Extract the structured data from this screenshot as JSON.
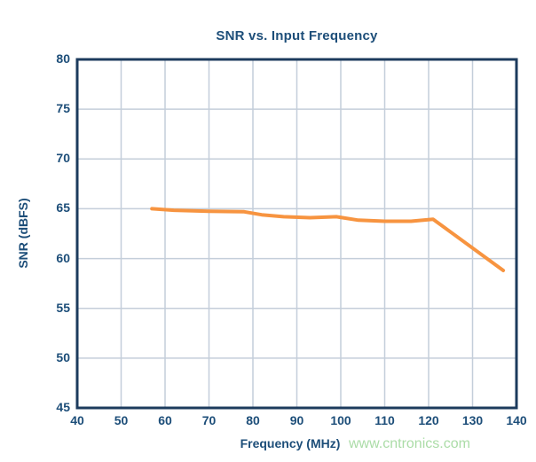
{
  "page": {
    "background": "#ffffff",
    "watermark": {
      "text": "www.cntronics.com",
      "color": "#abdca7"
    }
  },
  "chart_data": {
    "type": "line",
    "title": "SNR vs. Input Frequency",
    "xlabel": "Frequency (MHz)",
    "ylabel": "SNR (dBFS)",
    "xlim": [
      40,
      140
    ],
    "ylim": [
      45,
      80
    ],
    "x_ticks": [
      40,
      50,
      60,
      70,
      80,
      90,
      100,
      110,
      120,
      130,
      140
    ],
    "y_ticks": [
      45,
      50,
      55,
      60,
      65,
      70,
      75,
      80
    ],
    "grid": true,
    "legend": false,
    "series": [
      {
        "name": "SNR",
        "color": "#f79440",
        "points": [
          [
            57,
            65.0
          ],
          [
            62,
            64.85
          ],
          [
            70,
            64.75
          ],
          [
            78,
            64.7
          ],
          [
            82,
            64.4
          ],
          [
            87,
            64.2
          ],
          [
            93,
            64.1
          ],
          [
            99,
            64.2
          ],
          [
            104,
            63.85
          ],
          [
            110,
            63.75
          ],
          [
            116,
            63.75
          ],
          [
            121,
            63.95
          ],
          [
            137,
            58.8
          ]
        ]
      }
    ],
    "colors": {
      "axis_text": "#1d4e79",
      "frame": "#1c3b5d",
      "grid": "#c4ceda",
      "line": "#f79440"
    }
  }
}
